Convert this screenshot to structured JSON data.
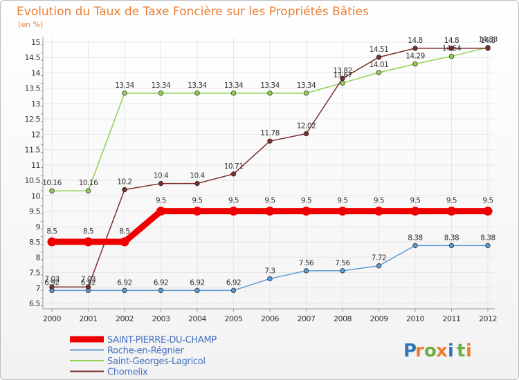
{
  "chart_data": {
    "type": "line",
    "title": "Evolution du Taux de Taxe Foncière sur les Propriétés Bâties",
    "subtitle": "(en %)",
    "x": [
      "2000",
      "2001",
      "2002",
      "2003",
      "2004",
      "2005",
      "2006",
      "2007",
      "2008",
      "2009",
      "2010",
      "2011",
      "2012"
    ],
    "ylim": [
      6.5,
      15
    ],
    "yticks": [
      "6.5",
      "7",
      "7.5",
      "8",
      "8.5",
      "9",
      "9.5",
      "10",
      "10.5",
      "11",
      "11.5",
      "12",
      "12.5",
      "13",
      "13.5",
      "14",
      "14.5",
      "15"
    ],
    "series": [
      {
        "name": "SAINT-PIERRE-DU-CHAMP",
        "color": "#ee0000",
        "values": [
          8.5,
          8.5,
          8.5,
          9.5,
          9.5,
          9.5,
          9.5,
          9.5,
          9.5,
          9.5,
          9.5,
          9.5,
          9.5
        ],
        "labels": [
          "8.5",
          "8.5",
          "8.5",
          "9.5",
          "9.5",
          "9.5",
          "9.5",
          "9.5",
          "9.5",
          "9.5",
          "9.5",
          "9.5",
          "9.5"
        ]
      },
      {
        "name": "Roche-en-Régnier",
        "color": "#5b9bd5",
        "values": [
          6.92,
          6.92,
          6.92,
          6.92,
          6.92,
          6.92,
          7.3,
          7.56,
          7.56,
          7.72,
          8.38,
          8.38,
          8.38
        ],
        "labels": [
          "6.92",
          "6.92",
          "6.92",
          "6.92",
          "6.92",
          "6.92",
          "7.3",
          "7.56",
          "7.56",
          "7.72",
          "8.38",
          "8.38",
          "8.38"
        ]
      },
      {
        "name": "Saint-Georges-Lagricol",
        "color": "#92d050",
        "values": [
          10.16,
          10.16,
          13.34,
          13.34,
          13.34,
          13.34,
          13.34,
          13.34,
          13.67,
          14.01,
          14.29,
          14.54,
          14.83
        ],
        "labels": [
          "10.16",
          "10.16",
          "13.34",
          "13.34",
          "13.34",
          "13.34",
          "13.34",
          "13.34",
          "13.67",
          "14.01",
          "14.29",
          "14.54",
          "14.83"
        ]
      },
      {
        "name": "Chomelix",
        "color": "#7b2c2c",
        "values": [
          7.03,
          7.03,
          10.2,
          10.4,
          10.4,
          10.71,
          11.78,
          12.02,
          13.82,
          14.51,
          14.8,
          14.8,
          14.8
        ],
        "labels": [
          "7.03",
          "7.03",
          "10.2",
          "10.4",
          "10.4",
          "10.71",
          "11.78",
          "12.02",
          "13.82",
          "14.51",
          "14.8",
          "14.8",
          "14.8"
        ]
      }
    ]
  },
  "logo": {
    "letters": [
      "P",
      "r",
      "o",
      "x",
      "i",
      "t",
      "i"
    ],
    "colors": [
      "#2e75b6",
      "#ed7d31",
      "#70ad47",
      "#ed7d31",
      "#2e75b6",
      "#70ad47",
      "#ed7d31"
    ]
  }
}
